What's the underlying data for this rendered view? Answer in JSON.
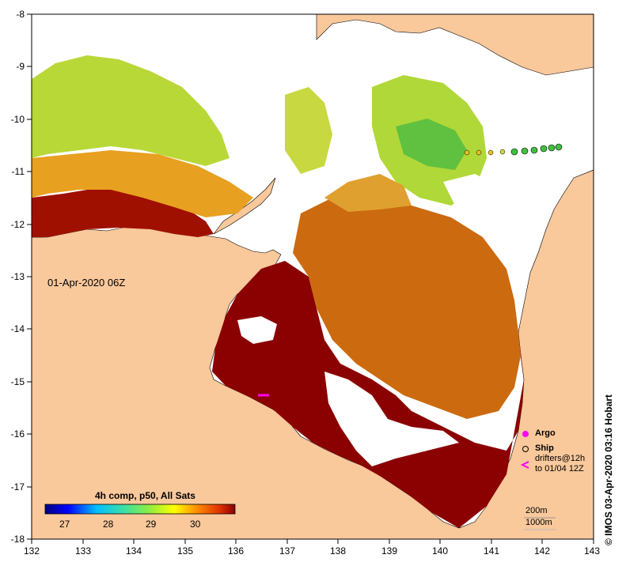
{
  "map": {
    "timestamp": "01-Apr-2020 06Z",
    "lon_ticks": [
      "132",
      "133",
      "134",
      "135",
      "136",
      "137",
      "138",
      "139",
      "140",
      "141",
      "142",
      "143"
    ],
    "lat_ticks": [
      "-8",
      "-9",
      "-10",
      "-11",
      "-12",
      "-13",
      "-14",
      "-15",
      "-16",
      "-17",
      "-18"
    ],
    "land_color": "#f9c89b",
    "no_data_color": "#ffffff"
  },
  "colorbar": {
    "title": "4h comp, p50, All Sats",
    "labels": [
      "27",
      "28",
      "29",
      "30"
    ]
  },
  "legend": {
    "argo": "Argo",
    "ship": "Ship",
    "drifters_line1": "drifters@12h",
    "drifters_line2": "to 01/04 12Z",
    "depth_1": "200m",
    "depth_2": "1000m"
  },
  "credit": "© IMOS 03-Apr-2020 03:16 Hobart"
}
